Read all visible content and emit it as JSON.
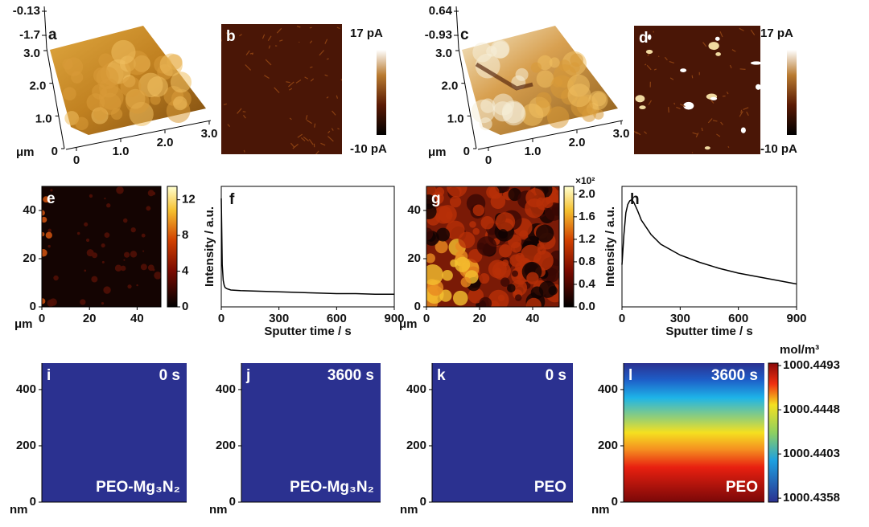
{
  "chart_data": [
    {
      "type": "surface",
      "panel": "a",
      "zticks": [
        -0.13,
        -1.7
      ],
      "xlim": [
        0,
        3
      ],
      "ylim": [
        0,
        3
      ],
      "xticks": [
        0,
        {
          "value": 1,
          "label": "1.0"
        },
        {
          "value": 2,
          "label": "2.0"
        },
        {
          "value": 3,
          "label": "3.0"
        }
      ],
      "yticks": [
        0,
        {
          "value": 1,
          "label": "1.0"
        },
        {
          "value": 2,
          "label": "2.0"
        },
        {
          "value": 3,
          "label": "3.0"
        }
      ],
      "unit": "μm",
      "style": "plain"
    },
    {
      "type": "image",
      "panel": "b",
      "clim": [
        -10,
        17
      ],
      "cticks": [
        {
          "value": 17,
          "label": "17 pA"
        },
        {
          "value": -10,
          "label": "-10 pA"
        }
      ],
      "spots": false
    },
    {
      "type": "surface",
      "panel": "c",
      "zticks": [
        0.64,
        -0.93
      ],
      "xlim": [
        0,
        3
      ],
      "ylim": [
        0,
        3
      ],
      "xticks": [
        0,
        {
          "value": 1,
          "label": "1.0"
        },
        {
          "value": 2,
          "label": "2.0"
        },
        {
          "value": 3,
          "label": "3.0"
        }
      ],
      "yticks": [
        0,
        {
          "value": 1,
          "label": "1.0"
        },
        {
          "value": 2,
          "label": "2.0"
        },
        {
          "value": 3,
          "label": "3.0"
        }
      ],
      "unit": "μm",
      "style": "pale"
    },
    {
      "type": "image",
      "panel": "d",
      "clim": [
        -10,
        17
      ],
      "cticks": [
        {
          "value": 17,
          "label": "17 pA"
        },
        {
          "value": -10,
          "label": "-10 pA"
        }
      ],
      "spots": true
    },
    {
      "type": "heatmap",
      "panel": "e",
      "xlim": [
        0,
        50
      ],
      "ylim": [
        0,
        50
      ],
      "xticks": [
        0,
        20,
        40
      ],
      "yticks": [
        0,
        20,
        40
      ],
      "xlabel": "μm",
      "clim": [
        0,
        13.5
      ],
      "cticks": [
        0,
        4,
        8,
        12
      ],
      "density": "sparse"
    },
    {
      "type": "line",
      "panel": "f",
      "xlabel": "Sputter time / s",
      "ylabel": "Intensity / a.u.",
      "xlim": [
        0,
        900
      ],
      "xticks": [
        0,
        300,
        600,
        900
      ],
      "ylim": [
        0,
        100
      ],
      "color": "#000000",
      "x": [
        0,
        5,
        10,
        15,
        20,
        30,
        50,
        100,
        200,
        300,
        400,
        500,
        600,
        700,
        800,
        900
      ],
      "values": [
        90,
        35,
        22,
        18,
        16,
        15,
        14,
        13.5,
        13,
        12.5,
        12,
        11.5,
        11,
        11,
        10.5,
        10.5
      ]
    },
    {
      "type": "heatmap",
      "panel": "g",
      "xlim": [
        0,
        50
      ],
      "ylim": [
        0,
        50
      ],
      "xticks": [
        0,
        20,
        40
      ],
      "yticks": [
        0,
        20,
        40
      ],
      "xlabel": "μm",
      "clim": [
        0,
        2.14
      ],
      "cscale": "×10²",
      "cticks": [
        {
          "value": 0,
          "label": "0.0"
        },
        0.4,
        0.8,
        1.2,
        1.6,
        {
          "value": 2,
          "label": "2.0"
        }
      ],
      "density": "dense"
    },
    {
      "type": "line",
      "panel": "h",
      "xlabel": "Sputter time / s",
      "ylabel": "Intensity / a.u.",
      "xlim": [
        0,
        900
      ],
      "xticks": [
        0,
        300,
        600,
        900
      ],
      "ylim": [
        0,
        100
      ],
      "color": "#000000",
      "x": [
        0,
        10,
        20,
        30,
        40,
        50,
        60,
        80,
        100,
        150,
        200,
        300,
        400,
        500,
        600,
        700,
        800,
        900
      ],
      "values": [
        35,
        60,
        78,
        85,
        88,
        89,
        87,
        80,
        72,
        60,
        52,
        43,
        37,
        32,
        28,
        25,
        22,
        19
      ]
    },
    {
      "type": "field",
      "panel": "i",
      "time": "0 s",
      "material": "PEO-Mg₃N₂",
      "ylim": [
        0,
        494
      ],
      "yticks": [
        0,
        200,
        400
      ],
      "xlabel": "nm",
      "color": "#2b3190"
    },
    {
      "type": "field",
      "panel": "j",
      "time": "3600 s",
      "material": "PEO-Mg₃N₂",
      "ylim": [
        0,
        494
      ],
      "yticks": [
        0,
        200,
        400
      ],
      "xlabel": "nm",
      "color": "#2b3190"
    },
    {
      "type": "field",
      "panel": "k",
      "time": "0 s",
      "material": "PEO",
      "ylim": [
        0,
        494
      ],
      "yticks": [
        0,
        200,
        400
      ],
      "xlabel": "nm",
      "color": "#2b3190"
    },
    {
      "type": "field",
      "panel": "l",
      "time": "3600 s",
      "material": "PEO",
      "ylim": [
        0,
        494
      ],
      "yticks": [
        0,
        200,
        400
      ],
      "xlabel": "nm",
      "colormap": "jet",
      "clim": [
        1000.4354,
        1000.44955
      ],
      "cticks": [
        1000.4358,
        1000.4403,
        1000.4448,
        1000.4493
      ],
      "cunit": "mol/m³"
    }
  ]
}
